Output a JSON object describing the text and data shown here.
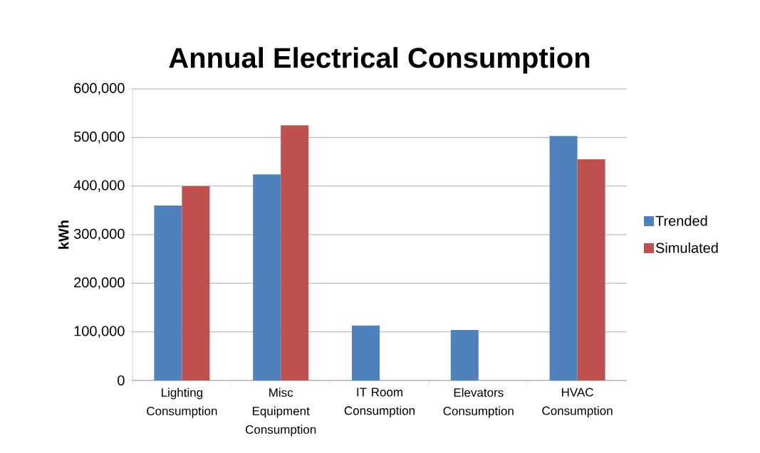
{
  "chart_data": {
    "type": "bar",
    "title": "Annual Electrical Consumption",
    "ylabel": "kWh",
    "categories": [
      "Lighting Consumption",
      "Misc Equipment Consumption",
      "IT Room Consumption",
      "Elevators Consumption",
      "HVAC Consumption"
    ],
    "series": [
      {
        "name": "Trended",
        "color": "#4f81bd",
        "values": [
          360000,
          424000,
          113000,
          104000,
          503000
        ]
      },
      {
        "name": "Simulated",
        "color": "#c0504d",
        "values": [
          400000,
          525000,
          null,
          null,
          455000
        ]
      }
    ],
    "ylim": [
      0,
      600000
    ],
    "yticks": [
      {
        "value": 0,
        "label": "0"
      },
      {
        "value": 100000,
        "label": "100,000"
      },
      {
        "value": 200000,
        "label": "200,000"
      },
      {
        "value": 300000,
        "label": "300,000"
      },
      {
        "value": 400000,
        "label": "400,000"
      },
      {
        "value": 500000,
        "label": "500,000"
      },
      {
        "value": 600000,
        "label": "600,000"
      }
    ],
    "grid": "y",
    "legend": "right"
  }
}
